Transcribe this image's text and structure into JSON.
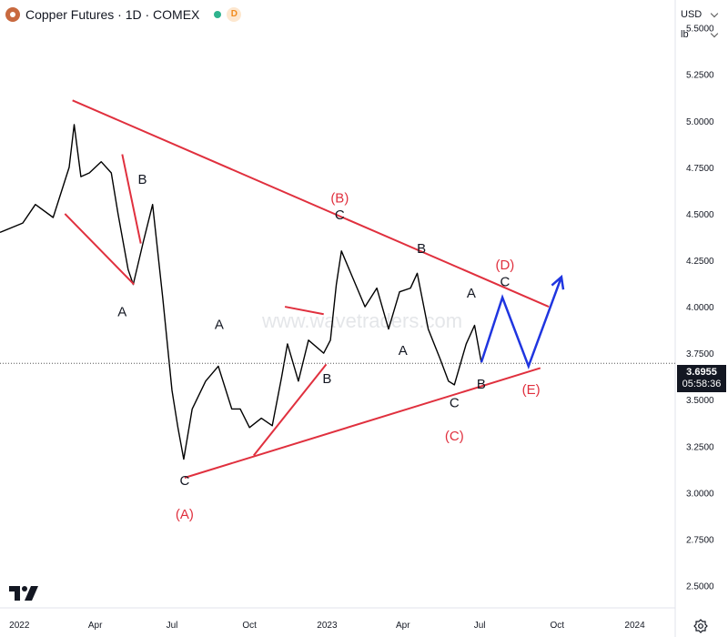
{
  "header": {
    "title": "Copper Futures · 1D · COMEX",
    "badge": "D",
    "currency": "USD",
    "unit": "lb"
  },
  "price_tag": {
    "price": "3.6955",
    "countdown": "05:58:36"
  },
  "watermark": "www.wavetraders.com",
  "colors": {
    "candles": "#000000",
    "wave_lines": "#e0303e",
    "projection": "#1f35e0",
    "label_black": "#131722",
    "label_red": "#e0303e"
  },
  "chart_data": {
    "type": "line",
    "title": "Copper Futures · 1D · COMEX",
    "xlabel": "",
    "ylabel": "",
    "x_ticks": [
      {
        "label": "2022",
        "date": "2022-01-01"
      },
      {
        "label": "Apr",
        "date": "2022-04-01"
      },
      {
        "label": "Jul",
        "date": "2022-07-01"
      },
      {
        "label": "Oct",
        "date": "2022-10-01"
      },
      {
        "label": "2023",
        "date": "2023-01-01"
      },
      {
        "label": "Apr",
        "date": "2023-04-01"
      },
      {
        "label": "Jul",
        "date": "2023-07-01"
      },
      {
        "label": "Oct",
        "date": "2023-10-01"
      },
      {
        "label": "2024",
        "date": "2024-01-01"
      }
    ],
    "y_ticks": [
      "5.5000",
      "5.2500",
      "5.0000",
      "4.7500",
      "4.5000",
      "4.2500",
      "4.0000",
      "3.7500",
      "3.5000",
      "3.2500",
      "3.0000",
      "2.7500",
      "2.5000"
    ],
    "ylim": [
      2.38,
      5.65
    ],
    "xlim": [
      "2021-12-09",
      "2024-02-18"
    ],
    "last_price": 3.6955,
    "price_series": {
      "name": "",
      "points": [
        [
          "2021-12-09",
          4.4
        ],
        [
          "2022-01-05",
          4.45
        ],
        [
          "2022-01-20",
          4.55
        ],
        [
          "2022-02-10",
          4.48
        ],
        [
          "2022-03-01",
          4.75
        ],
        [
          "2022-03-07",
          4.98
        ],
        [
          "2022-03-15",
          4.7
        ],
        [
          "2022-03-25",
          4.72
        ],
        [
          "2022-04-08",
          4.78
        ],
        [
          "2022-04-20",
          4.72
        ],
        [
          "2022-04-28",
          4.5
        ],
        [
          "2022-05-10",
          4.2
        ],
        [
          "2022-05-16",
          4.12
        ],
        [
          "2022-05-28",
          4.35
        ],
        [
          "2022-06-08",
          4.55
        ],
        [
          "2022-06-20",
          4.05
        ],
        [
          "2022-07-01",
          3.55
        ],
        [
          "2022-07-08",
          3.35
        ],
        [
          "2022-07-15",
          3.18
        ],
        [
          "2022-07-25",
          3.45
        ],
        [
          "2022-08-10",
          3.6
        ],
        [
          "2022-08-25",
          3.68
        ],
        [
          "2022-09-10",
          3.45
        ],
        [
          "2022-09-20",
          3.45
        ],
        [
          "2022-10-01",
          3.35
        ],
        [
          "2022-10-15",
          3.4
        ],
        [
          "2022-10-28",
          3.36
        ],
        [
          "2022-11-08",
          3.62
        ],
        [
          "2022-11-15",
          3.8
        ],
        [
          "2022-11-28",
          3.6
        ],
        [
          "2022-12-10",
          3.82
        ],
        [
          "2022-12-28",
          3.75
        ],
        [
          "2023-01-05",
          3.82
        ],
        [
          "2023-01-12",
          4.12
        ],
        [
          "2023-01-18",
          4.3
        ],
        [
          "2023-02-01",
          4.15
        ],
        [
          "2023-02-15",
          4.0
        ],
        [
          "2023-03-01",
          4.1
        ],
        [
          "2023-03-15",
          3.88
        ],
        [
          "2023-03-28",
          4.08
        ],
        [
          "2023-04-10",
          4.1
        ],
        [
          "2023-04-18",
          4.18
        ],
        [
          "2023-05-01",
          3.88
        ],
        [
          "2023-05-15",
          3.72
        ],
        [
          "2023-05-25",
          3.6
        ],
        [
          "2023-06-01",
          3.58
        ],
        [
          "2023-06-15",
          3.8
        ],
        [
          "2023-06-25",
          3.9
        ],
        [
          "2023-07-03",
          3.7
        ]
      ]
    },
    "trendlines": [
      {
        "from": [
          "2022-03-05",
          5.11
        ],
        "to": [
          "2023-09-21",
          4.0
        ]
      },
      {
        "from": [
          "2022-07-16",
          3.08
        ],
        "to": [
          "2023-09-11",
          3.67
        ]
      },
      {
        "from": [
          "2022-02-24",
          4.5
        ],
        "to": [
          "2022-05-17",
          4.12
        ]
      },
      {
        "from": [
          "2022-05-03",
          4.82
        ],
        "to": [
          "2022-05-25",
          4.34
        ]
      },
      {
        "from": [
          "2022-10-06",
          3.2
        ],
        "to": [
          "2022-12-31",
          3.69
        ]
      },
      {
        "from": [
          "2022-11-12",
          4.0
        ],
        "to": [
          "2022-12-28",
          3.96
        ]
      }
    ],
    "projection": {
      "points": [
        [
          "2023-07-03",
          3.7
        ],
        [
          "2023-07-28",
          4.05
        ],
        [
          "2023-08-28",
          3.68
        ],
        [
          "2023-10-06",
          4.16
        ]
      ]
    },
    "wave_labels": [
      {
        "text": "A",
        "date": "2022-05-03",
        "price": 3.95,
        "color": "black"
      },
      {
        "text": "B",
        "date": "2022-05-27",
        "price": 4.66,
        "color": "black"
      },
      {
        "text": "C",
        "date": "2022-07-16",
        "price": 3.04,
        "color": "black"
      },
      {
        "text": "(A)",
        "date": "2022-07-16",
        "price": 2.86,
        "color": "red"
      },
      {
        "text": "A",
        "date": "2022-08-26",
        "price": 3.88,
        "color": "black"
      },
      {
        "text": "B",
        "date": "2023-01-01",
        "price": 3.59,
        "color": "black"
      },
      {
        "text": "(B)",
        "date": "2023-01-16",
        "price": 4.56,
        "color": "red"
      },
      {
        "text": "C",
        "date": "2023-01-16",
        "price": 4.47,
        "color": "black"
      },
      {
        "text": "A",
        "date": "2023-04-01",
        "price": 3.74,
        "color": "black"
      },
      {
        "text": "B",
        "date": "2023-04-23",
        "price": 4.29,
        "color": "black"
      },
      {
        "text": "C",
        "date": "2023-06-01",
        "price": 3.46,
        "color": "black"
      },
      {
        "text": "(C)",
        "date": "2023-06-01",
        "price": 3.28,
        "color": "red"
      },
      {
        "text": "A",
        "date": "2023-06-21",
        "price": 4.05,
        "color": "black"
      },
      {
        "text": "B",
        "date": "2023-07-03",
        "price": 3.56,
        "color": "black"
      },
      {
        "text": "(D)",
        "date": "2023-07-31",
        "price": 4.2,
        "color": "red"
      },
      {
        "text": "C",
        "date": "2023-07-31",
        "price": 4.11,
        "color": "black"
      },
      {
        "text": "(E)",
        "date": "2023-08-31",
        "price": 3.53,
        "color": "red"
      }
    ]
  }
}
